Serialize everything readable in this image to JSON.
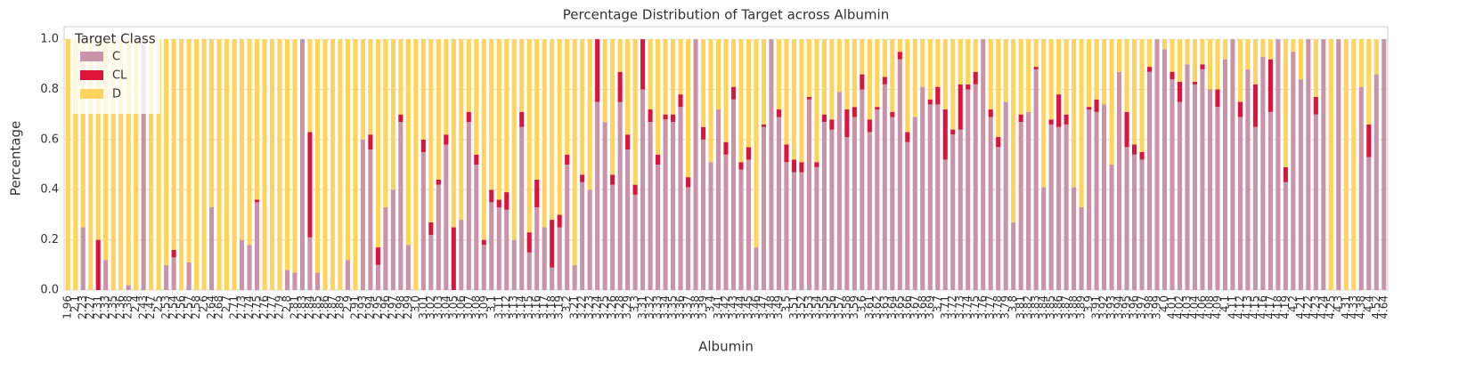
{
  "chart_data": {
    "type": "stacked_bar",
    "title": "Percentage Distribution of Target across Albumin",
    "x_label": "Albumin",
    "y_label": "Percentage",
    "legend_title": "Target Class",
    "legend_position": "upper left",
    "grid": true,
    "ylim": [
      0,
      1.05
    ],
    "yticks": [
      {
        "value": 0,
        "label": "0.0"
      },
      0.2,
      0.4,
      0.6,
      0.8,
      {
        "value": 1,
        "label": "1.0"
      }
    ],
    "categories": [
      "1.96",
      "2.1",
      "2.23",
      "2.27",
      "2.31",
      "2.33",
      "2.35",
      "2.36",
      "2.38",
      "2.4",
      "2.43",
      "2.47",
      "2.5",
      "2.53",
      "2.54",
      "2.56",
      "2.57",
      "2.58",
      "2.6",
      "2.64",
      "2.68",
      "2.7",
      "2.71",
      "2.73",
      "2.74",
      "2.75",
      "2.76",
      "2.77",
      "2.79",
      "2.8",
      "2.81",
      "2.83",
      "2.84",
      "2.85",
      "2.86",
      "2.87",
      "2.89",
      "2.9",
      "2.91",
      "2.93",
      "2.94",
      "2.95",
      "2.96",
      "2.97",
      "2.98",
      "2.99",
      "3.0",
      "3.01",
      "3.02",
      "3.03",
      "3.04",
      "3.05",
      "3.06",
      "3.07",
      "3.08",
      "3.09",
      "3.1",
      "3.11",
      "3.12",
      "3.13",
      "3.14",
      "3.15",
      "3.16",
      "3.17",
      "3.18",
      "3.19",
      "3.2",
      "3.21",
      "3.22",
      "3.23",
      "3.24",
      "3.25",
      "3.26",
      "3.28",
      "3.29",
      "3.3",
      "3.31",
      "3.32",
      "3.33",
      "3.34",
      "3.35",
      "3.36",
      "3.37",
      "3.38",
      "3.39",
      "3.4",
      "3.41",
      "3.42",
      "3.43",
      "3.44",
      "3.45",
      "3.46",
      "3.47",
      "3.48",
      "3.49",
      "3.5",
      "3.51",
      "3.52",
      "3.53",
      "3.54",
      "3.55",
      "3.56",
      "3.57",
      "3.58",
      "3.59",
      "3.6",
      "3.61",
      "3.62",
      "3.63",
      "3.64",
      "3.65",
      "3.66",
      "3.67",
      "3.68",
      "3.69",
      "3.7",
      "3.71",
      "3.72",
      "3.73",
      "3.74",
      "3.75",
      "3.76",
      "3.77",
      "3.78",
      "3.79",
      "3.8",
      "3.81",
      "3.82",
      "3.83",
      "3.84",
      "3.85",
      "3.86",
      "3.87",
      "3.88",
      "3.89",
      "3.9",
      "3.91",
      "3.92",
      "3.93",
      "3.94",
      "3.95",
      "3.96",
      "3.97",
      "3.98",
      "3.99",
      "4.0",
      "4.01",
      "4.02",
      "4.03",
      "4.04",
      "4.06",
      "4.08",
      "4.09",
      "4.1",
      "4.11",
      "4.12",
      "4.13",
      "4.15",
      "4.16",
      "4.17",
      "4.18",
      "4.19",
      "4.2",
      "4.21",
      "4.22",
      "4.23",
      "4.24",
      "4.25",
      "4.3",
      "4.31",
      "4.33",
      "4.38",
      "4.4",
      "4.52",
      "4.64"
    ],
    "series": [
      {
        "name": "C",
        "color": "#c994a9",
        "values": [
          0,
          0,
          0.25,
          0,
          0,
          0.12,
          0,
          0,
          0.02,
          0,
          1,
          0,
          0,
          0.1,
          0.13,
          0,
          0.11,
          0,
          0,
          0.33,
          0,
          0,
          0,
          0.2,
          0.18,
          0.35,
          0,
          0,
          0,
          0.08,
          0.07,
          1,
          0.21,
          0.07,
          0,
          0,
          0,
          0.12,
          0,
          0.6,
          0.56,
          0.1,
          0.33,
          0.4,
          0.67,
          0.18,
          0,
          0.55,
          0.22,
          0.42,
          0.58,
          0,
          0.28,
          0.67,
          0.5,
          0.18,
          0.35,
          0.33,
          0.32,
          0.2,
          0.65,
          0.15,
          0.33,
          0.25,
          0.09,
          0.25,
          0.5,
          0.1,
          0.43,
          0.4,
          0.75,
          0.67,
          0.42,
          0.75,
          0.56,
          0.38,
          0.8,
          0.67,
          0.5,
          0.68,
          0.67,
          0.73,
          0.41,
          1,
          0.6,
          0.51,
          0.72,
          0.54,
          0.76,
          0.48,
          0.52,
          0.17,
          0.65,
          1,
          0.69,
          0.51,
          0.47,
          0.47,
          0.76,
          0.49,
          0.67,
          0.64,
          0.79,
          0.61,
          0.69,
          0.8,
          0.63,
          0.72,
          0.82,
          0.69,
          0.92,
          0.59,
          0.69,
          0.81,
          0.74,
          0.74,
          0.52,
          0.62,
          0.64,
          0.8,
          0.82,
          1,
          0.69,
          0.57,
          0.75,
          0.27,
          0.67,
          0.71,
          0.88,
          0.41,
          0.66,
          0.65,
          0.66,
          0.41,
          0.33,
          0.72,
          0.71,
          0.74,
          0.5,
          0.87,
          0.57,
          0.54,
          0.52,
          0.87,
          1,
          0.96,
          0.84,
          0.75,
          0.9,
          0.82,
          0.88,
          0.8,
          0.73,
          0.92,
          1,
          0.69,
          0.88,
          0.65,
          0.93,
          0.71,
          1,
          0.43,
          0.95,
          0.84,
          1,
          0.7,
          1,
          0,
          1,
          0,
          0,
          0.81,
          0.53,
          0.86,
          1
        ]
      },
      {
        "name": "CL",
        "color": "#dc143c",
        "values": [
          0,
          0,
          0,
          0,
          0.2,
          0,
          0,
          0,
          0,
          0,
          0,
          0,
          0,
          0,
          0.03,
          0,
          0,
          0,
          0,
          0,
          0,
          0,
          0,
          0,
          0,
          0.01,
          0,
          0,
          0,
          0,
          0,
          0,
          0.42,
          0,
          0,
          0,
          0,
          0,
          0,
          0,
          0.06,
          0.07,
          0,
          0,
          0.03,
          0,
          0,
          0.05,
          0.05,
          0.02,
          0.04,
          0.25,
          0,
          0.04,
          0.04,
          0.02,
          0.05,
          0.03,
          0.07,
          0,
          0.06,
          0.08,
          0.11,
          0,
          0.19,
          0.05,
          0.04,
          0,
          0.03,
          0,
          0.25,
          0,
          0.04,
          0.12,
          0.06,
          0.04,
          0.2,
          0.05,
          0.04,
          0.02,
          0.03,
          0.05,
          0.04,
          0,
          0.05,
          0,
          0,
          0.05,
          0.05,
          0.03,
          0.05,
          0,
          0.01,
          0,
          0.03,
          0.07,
          0.05,
          0.04,
          0.01,
          0.02,
          0.03,
          0.04,
          0,
          0.11,
          0.04,
          0.06,
          0.05,
          0.01,
          0.03,
          0.02,
          0.03,
          0.04,
          0,
          0,
          0.02,
          0.07,
          0.2,
          0.02,
          0.18,
          0.02,
          0.05,
          0,
          0.03,
          0.04,
          0,
          0,
          0.03,
          0,
          0.01,
          0,
          0.02,
          0.13,
          0.04,
          0,
          0,
          0.01,
          0.05,
          0,
          0,
          0,
          0.14,
          0.04,
          0.03,
          0.02,
          0,
          0,
          0.03,
          0.08,
          0,
          0.01,
          0.02,
          0,
          0.07,
          0,
          0,
          0.06,
          0,
          0.17,
          0,
          0.21,
          0,
          0.06,
          0,
          0,
          0,
          0.07,
          0,
          0,
          0,
          0,
          0,
          0,
          0.13,
          0,
          0
        ]
      },
      {
        "name": "D",
        "color": "#ffd35c",
        "values": [
          1,
          1,
          0.75,
          1,
          0.8,
          0.88,
          1,
          1,
          0.98,
          1,
          0,
          1,
          1,
          0.9,
          0.84,
          1,
          0.89,
          1,
          1,
          0.67,
          1,
          1,
          1,
          0.8,
          0.82,
          0.64,
          1,
          1,
          1,
          0.92,
          0.93,
          0,
          0.37,
          0.93,
          1,
          1,
          1,
          0.88,
          1,
          0.4,
          0.38,
          0.83,
          0.67,
          0.6,
          0.3,
          0.82,
          1,
          0.4,
          0.73,
          0.56,
          0.38,
          0.75,
          0.72,
          0.29,
          0.46,
          0.8,
          0.6,
          0.64,
          0.61,
          0.8,
          0.29,
          0.77,
          0.56,
          0.75,
          0.72,
          0.7,
          0.46,
          0.9,
          0.54,
          0.6,
          0,
          0.33,
          0.54,
          0.13,
          0.38,
          0.58,
          0,
          0.28,
          0.46,
          0.3,
          0.3,
          0.22,
          0.55,
          0,
          0.35,
          0.49,
          0.28,
          0.41,
          0.19,
          0.49,
          0.43,
          0.83,
          0.34,
          0,
          0.28,
          0.42,
          0.48,
          0.49,
          0.23,
          0.49,
          0.3,
          0.32,
          0.21,
          0.28,
          0.27,
          0.14,
          0.32,
          0.27,
          0.15,
          0.29,
          0.05,
          0.37,
          0.31,
          0.19,
          0.24,
          0.19,
          0.28,
          0.36,
          0.18,
          0.18,
          0.13,
          0,
          0.28,
          0.39,
          0.25,
          0.73,
          0.3,
          0.29,
          0.11,
          0.59,
          0.32,
          0.22,
          0.3,
          0.59,
          0.67,
          0.27,
          0.24,
          0.26,
          0.5,
          0.13,
          0.29,
          0.42,
          0.45,
          0.11,
          0,
          0.04,
          0.13,
          0.17,
          0.1,
          0.17,
          0.1,
          0.2,
          0.2,
          0.08,
          0,
          0.25,
          0.12,
          0.18,
          0.07,
          0.08,
          0,
          0.51,
          0.05,
          0.16,
          0,
          0.23,
          0,
          1,
          0,
          1,
          1,
          0.19,
          0.34,
          0.14,
          0
        ]
      }
    ]
  }
}
